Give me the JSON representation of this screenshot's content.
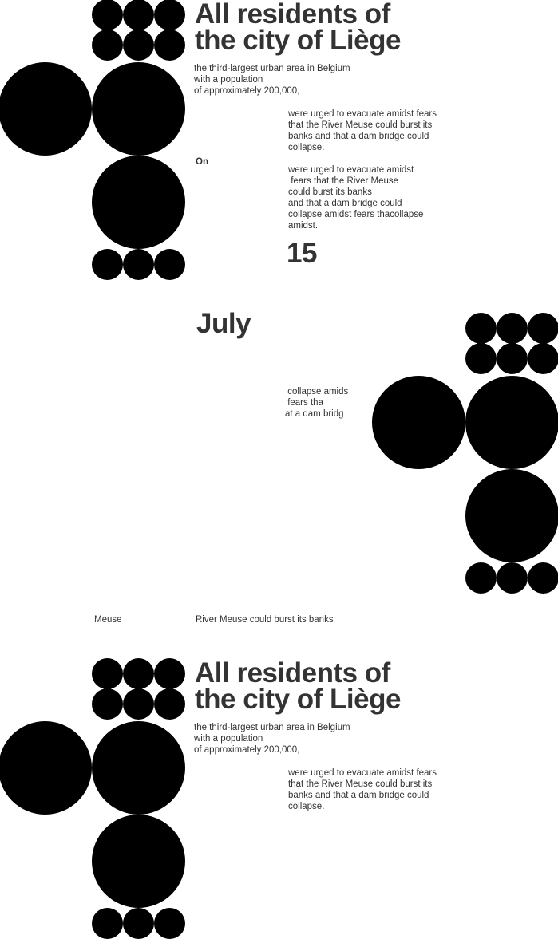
{
  "poster_top": {
    "title_line1": "All residents of",
    "title_line2": "the city of Liège",
    "intro": "the third-largest urban area in Belgium\nwith a population\nof approximately 200,000,",
    "paragraph1": "were urged to evacuate amidst fears\nthat the River Meuse could burst its\nbanks and that a dam bridge could\ncollapse.",
    "on_label": "On",
    "paragraph2": "were urged to evacuate amidst\n fears that the River Meuse\ncould burst its banks\nand that a dam bridge could\ncollapse amidst fears thacollapse\namidst.",
    "day": "15"
  },
  "middle": {
    "month": "July",
    "fragment": " collapse amids\n fears tha\nat a dam bridg",
    "footer_left": "Meuse",
    "footer_right": "River Meuse could burst its banks"
  },
  "poster_bottom": {
    "title_line1": "All residents of",
    "title_line2": "the city of Liège",
    "intro": "the third-largest urban area in Belgium\nwith a population\nof approximately 200,000,",
    "paragraph1": "were urged to evacuate amidst fears\nthat the River Meuse could burst its\nbanks and that a dam bridge could\ncollapse."
  },
  "colors": {
    "text": "#333333",
    "circles": "#000000",
    "background": "#ffffff"
  }
}
